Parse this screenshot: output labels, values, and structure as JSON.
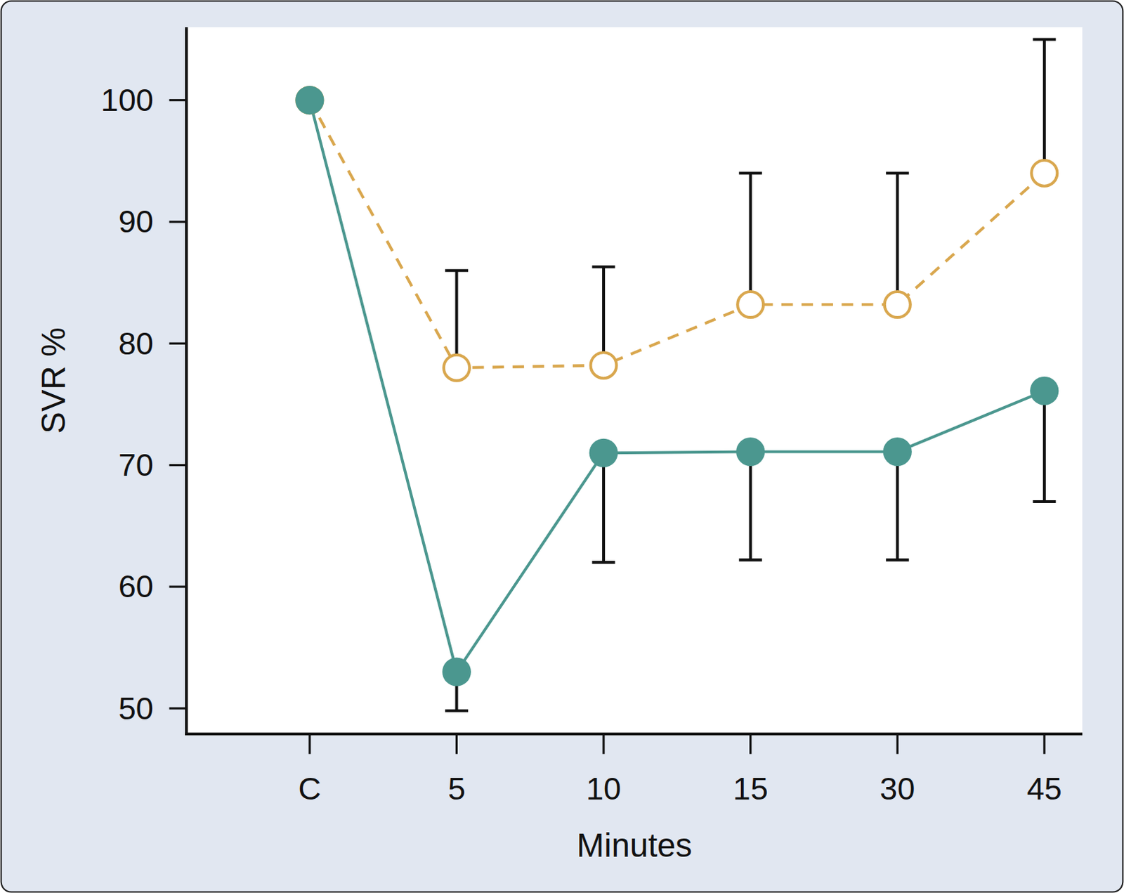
{
  "chart_data": {
    "type": "line",
    "x_label": "Minutes",
    "y_label": "SVR %",
    "categories": [
      "C",
      "5",
      "10",
      "15",
      "30",
      "45"
    ],
    "ylim": [
      47.9,
      106
    ],
    "yticks": [
      50,
      60,
      70,
      80,
      90,
      100
    ],
    "grid": false,
    "series": [
      {
        "color": "#d9a74e",
        "marker": "open-circle",
        "line_style": "dashed",
        "values": [
          100,
          78,
          78.2,
          83.2,
          83.2,
          94
        ],
        "errors_upper": [
          null,
          8,
          8.1,
          10.8,
          10.8,
          11
        ]
      },
      {
        "color": "#4b978f",
        "marker": "filled-circle",
        "line_style": "solid",
        "values": [
          100,
          53,
          71,
          71.1,
          71.1,
          76.1
        ],
        "errors_lower": [
          null,
          3.2,
          9,
          8.9,
          8.9,
          9.1
        ]
      }
    ]
  }
}
